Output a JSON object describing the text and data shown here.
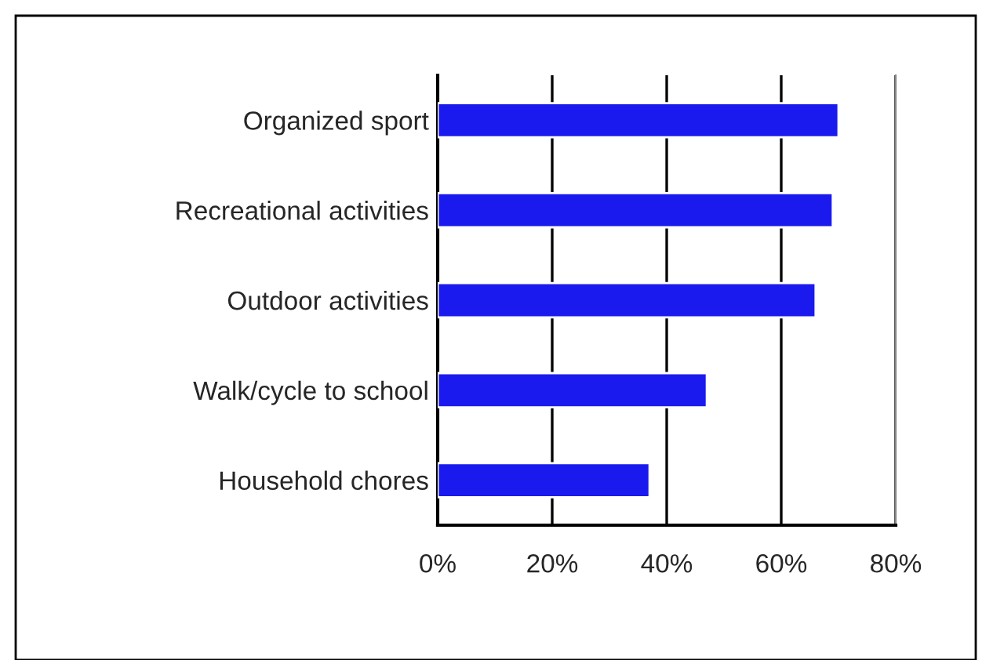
{
  "chart_data": {
    "type": "bar",
    "orientation": "horizontal",
    "categories": [
      "Organized sport",
      "Recreational activities",
      "Outdoor activities",
      "Walk/cycle to school",
      "Household chores"
    ],
    "values": [
      70,
      69,
      66,
      47,
      37
    ],
    "color": "#1a1aee",
    "xlim": [
      0,
      80
    ],
    "xticks": [
      {
        "value": 0,
        "label": "0%"
      },
      {
        "value": 20,
        "label": "20%"
      },
      {
        "value": 40,
        "label": "40%"
      },
      {
        "value": 60,
        "label": "60%"
      },
      {
        "value": 80,
        "label": "80%"
      }
    ],
    "grid": "x"
  }
}
